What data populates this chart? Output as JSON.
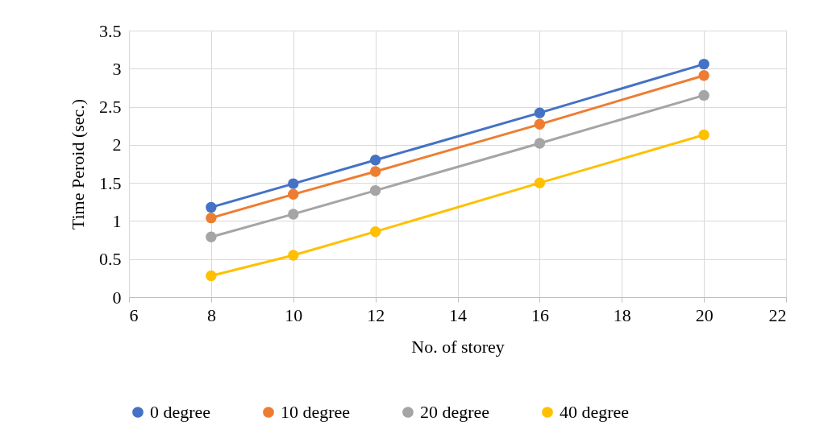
{
  "chart_data": {
    "type": "line",
    "xlabel": "No. of storey",
    "ylabel": "Time Peroid (sec.)",
    "x": [
      8,
      10,
      12,
      16,
      20
    ],
    "series": [
      {
        "name": "0 degree",
        "color": "#4472c4",
        "values": [
          1.18,
          1.49,
          1.8,
          2.42,
          3.06
        ]
      },
      {
        "name": "10 degree",
        "color": "#ed7d31",
        "values": [
          1.04,
          1.35,
          1.65,
          2.27,
          2.91
        ]
      },
      {
        "name": "20 degree",
        "color": "#a5a5a5",
        "values": [
          0.79,
          1.09,
          1.4,
          2.02,
          2.65
        ]
      },
      {
        "name": "40 degree",
        "color": "#ffc000",
        "values": [
          0.28,
          0.55,
          0.86,
          1.5,
          2.13
        ]
      }
    ],
    "xlim": [
      6,
      22
    ],
    "xticks": [
      6,
      8,
      10,
      12,
      14,
      16,
      18,
      20,
      22
    ],
    "ylim": [
      0,
      3.5
    ],
    "yticks": [
      0,
      0.5,
      1,
      1.5,
      2,
      2.5,
      3,
      3.5
    ],
    "grid": true,
    "legend": "bottom",
    "marker": "circle",
    "line_style": "solid"
  }
}
